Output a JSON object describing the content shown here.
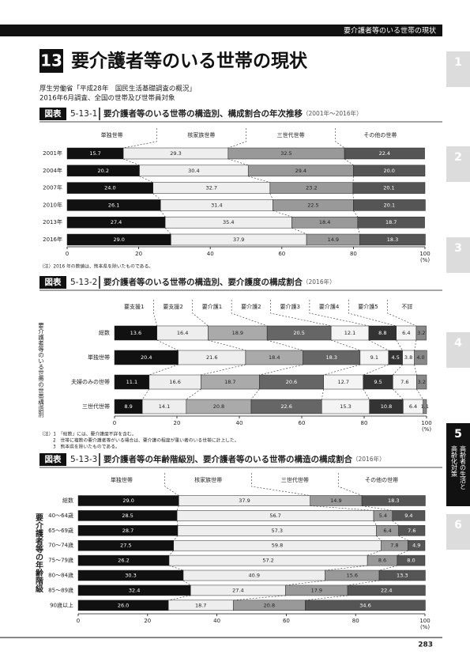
{
  "header": {
    "running_title": "要介護者等のいる世帯の現状"
  },
  "section_number": "13",
  "title": "要介護者等のいる世帯の現状",
  "source": [
    "厚生労働省「平成28年　国民生活基礎調査の概況」",
    "2016年6月調査、全国の世帯及び世帯員対象"
  ],
  "side_tabs": [
    {
      "number": "1"
    },
    {
      "number": "2"
    },
    {
      "number": "3"
    },
    {
      "number": "4"
    },
    {
      "number": "5",
      "text": [
        "高齢者の生活と",
        "高齢化対策"
      ]
    },
    {
      "number": "6"
    }
  ],
  "chart_data": [
    {
      "type": "bar",
      "orientation": "horizontal",
      "stacked": true,
      "figure_label": "図表",
      "figure_number": "5-13-1",
      "title": "要介護者等のいる世帯の構造別、構成割合の年次推移",
      "subtitle": "（2001年～2016年）",
      "categories": [
        "2001年",
        "2004年",
        "2007年",
        "2010年",
        "2013年",
        "2016年"
      ],
      "series": [
        {
          "name": "単独世帯",
          "color": "#111111",
          "values": [
            15.7,
            20.2,
            24.0,
            26.1,
            27.4,
            29.0
          ],
          "value_labels": [
            "15.7",
            "20.2",
            "24.0",
            "26.1",
            "27.4",
            "29.0"
          ]
        },
        {
          "name": "核家族世帯",
          "color": "#eeeeee",
          "values": [
            29.3,
            30.4,
            32.7,
            31.4,
            35.4,
            37.9
          ],
          "value_labels": [
            "29.3",
            "30.4",
            "32.7",
            "31.4",
            "35.4",
            "37.9"
          ]
        },
        {
          "name": "三世代世帯",
          "color": "#999999",
          "values": [
            32.5,
            29.4,
            23.2,
            22.5,
            18.4,
            14.9
          ],
          "value_labels": [
            "32.5",
            "29.4",
            "23.2",
            "22.5",
            "18.4",
            "14.9"
          ]
        },
        {
          "name": "その他の世帯",
          "color": "#555555",
          "values": [
            22.4,
            20.0,
            20.1,
            20.1,
            18.7,
            18.3
          ],
          "value_labels": [
            "22.4",
            "20.0",
            "20.1",
            "20.1",
            "18.7",
            "18.3"
          ]
        }
      ],
      "xlim": [
        0,
        100
      ],
      "xticks": [
        0,
        20,
        40,
        60,
        80,
        100
      ],
      "x_unit": "(%)",
      "notes": [
        "（注）2016 年の数値は、熊本県を除いたものである。"
      ]
    },
    {
      "type": "bar",
      "orientation": "horizontal",
      "stacked": true,
      "figure_label": "図表",
      "figure_number": "5-13-2",
      "title": "要介護者等のいる世帯の構造別、要介護度の構成割合",
      "subtitle": "（2016年）",
      "ylabel": "要介護者等のいる世帯の世帯構造別",
      "categories": [
        "総数",
        "単独世帯",
        "夫婦のみの世帯",
        "三世代世帯"
      ],
      "series": [
        {
          "name": "要支援1",
          "color": "#111111",
          "values": [
            13.6,
            20.4,
            11.1,
            8.9
          ],
          "value_labels": [
            "13.6",
            "20.4",
            "11.1",
            "8.9"
          ]
        },
        {
          "name": "要支援2",
          "color": "#eeeeee",
          "values": [
            16.4,
            21.6,
            16.6,
            14.1
          ],
          "value_labels": [
            "16.4",
            "21.6",
            "16.6",
            "14.1"
          ]
        },
        {
          "name": "要介護1",
          "color": "#aaaaaa",
          "values": [
            18.9,
            18.4,
            18.7,
            20.8
          ],
          "value_labels": [
            "18.9",
            "18.4",
            "18.7",
            "20.8"
          ]
        },
        {
          "name": "要介護2",
          "color": "#666666",
          "values": [
            20.5,
            18.3,
            20.6,
            22.6
          ],
          "value_labels": [
            "20.5",
            "18.3",
            "20.6",
            "22.6"
          ]
        },
        {
          "name": "要介護3",
          "color": "#f4f4f4",
          "values": [
            12.1,
            9.1,
            12.7,
            15.3
          ],
          "value_labels": [
            "12.1",
            "9.1",
            "12.7",
            "15.3"
          ]
        },
        {
          "name": "要介護4",
          "color": "#333333",
          "values": [
            8.8,
            4.5,
            9.5,
            10.8
          ],
          "value_labels": [
            "8.8",
            "4.5",
            "9.5",
            "10.8"
          ]
        },
        {
          "name": "要介護5",
          "color": "#f4f4f4",
          "values": [
            6.4,
            3.8,
            7.6,
            6.4
          ],
          "value_labels": [
            "6.4",
            "3.8",
            "7.6",
            "6.4"
          ]
        },
        {
          "name": "不詳",
          "color": "#888888",
          "values": [
            3.2,
            4.0,
            3.2,
            1.1
          ],
          "value_labels": [
            "3.2",
            "4.0",
            "3.2",
            "1.1"
          ]
        }
      ],
      "xlim": [
        0,
        100
      ],
      "xticks": [
        0,
        20,
        40,
        60,
        80,
        100
      ],
      "x_unit": "(%)",
      "notes": [
        "（注）1　「総数」には、要介護度不詳を含む。",
        "2　世帯に複数の要介護者等がいる場合は、要介護の程度が重い者のいる世帯に計上した。",
        "3　熊本県を除いたものである。"
      ]
    },
    {
      "type": "bar",
      "orientation": "horizontal",
      "stacked": true,
      "figure_label": "図表",
      "figure_number": "5-13-3",
      "title": "要介護者等の年齢階級別、要介護者等のいる世帯の構造の構成割合",
      "subtitle": "（2016年）",
      "ylabel": "要介護者等の年齢階級",
      "categories": [
        "総数",
        "40～64歳",
        "65～69歳",
        "70～74歳",
        "75～79歳",
        "80～84歳",
        "85～89歳",
        "90歳以上"
      ],
      "series": [
        {
          "name": "単独世帯",
          "color": "#111111",
          "values": [
            29.0,
            28.5,
            28.7,
            27.5,
            26.2,
            30.3,
            32.4,
            26.0
          ],
          "value_labels": [
            "29.0",
            "28.5",
            "28.7",
            "27.5",
            "26.2",
            "30.3",
            "32.4",
            "26.0"
          ]
        },
        {
          "name": "核家族世帯",
          "color": "#eeeeee",
          "values": [
            37.9,
            56.7,
            57.3,
            59.8,
            57.2,
            40.9,
            27.4,
            18.7
          ],
          "value_labels": [
            "37.9",
            "56.7",
            "57.3",
            "59.8",
            "57.2",
            "40.9",
            "27.4",
            "18.7"
          ]
        },
        {
          "name": "三世代世帯",
          "color": "#999999",
          "values": [
            14.9,
            5.4,
            6.4,
            7.8,
            8.6,
            15.6,
            17.9,
            20.8
          ],
          "value_labels": [
            "14.9",
            "5.4",
            "6.4",
            "7.8",
            "8.6",
            "15.6",
            "17.9",
            "20.8"
          ]
        },
        {
          "name": "その他の世帯",
          "color": "#555555",
          "values": [
            18.3,
            9.4,
            7.6,
            4.9,
            8.0,
            13.3,
            22.4,
            34.6
          ],
          "value_labels": [
            "18.3",
            "9.4",
            "7.6",
            "4.9",
            "8.0",
            "13.3",
            "22.4",
            "34.6"
          ]
        }
      ],
      "xlim": [
        0,
        100
      ],
      "xticks": [
        0,
        20,
        40,
        60,
        80,
        100
      ],
      "x_unit": "(%)"
    }
  ],
  "page_number": "283"
}
